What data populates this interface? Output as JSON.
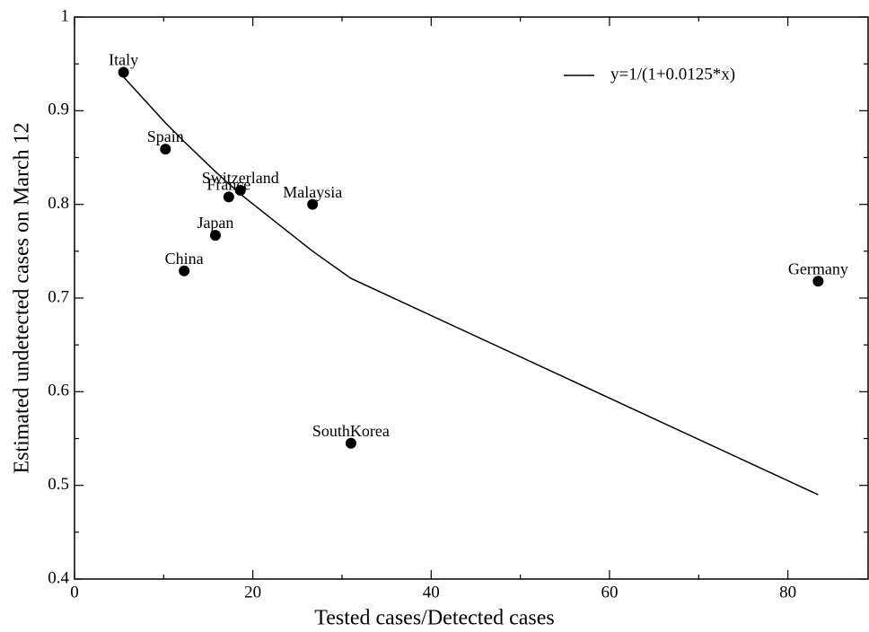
{
  "chart_data": {
    "type": "scatter",
    "xlabel": "Tested cases/Detected cases",
    "ylabel": "Estimated undetected cases on March 12",
    "xlim": [
      0,
      89
    ],
    "ylim": [
      0.4,
      1
    ],
    "xticks": [
      0,
      20,
      40,
      60,
      80
    ],
    "xminorticks": [
      10,
      30,
      50,
      70
    ],
    "yticks": [
      0.4,
      0.5,
      0.6,
      0.7,
      0.8,
      0.9,
      1
    ],
    "yminorticks": [
      0.45,
      0.55,
      0.65,
      0.75,
      0.85,
      0.95
    ],
    "legend": "upper right",
    "points": {
      "color": "#000000",
      "labels": [
        "Italy",
        "Spain",
        "Switzerland",
        "France",
        "Malaysia",
        "Japan",
        "China",
        "SouthKorea",
        "Germany"
      ],
      "x": [
        5.5,
        10.2,
        18.6,
        17.3,
        26.7,
        15.8,
        12.3,
        31.0,
        83.4
      ],
      "values": [
        0.941,
        0.859,
        0.815,
        0.808,
        0.8,
        0.767,
        0.729,
        0.545,
        0.718
      ]
    },
    "series": [
      {
        "name": "y=1/(1+0.0125*x)",
        "type": "line",
        "color": "#000000",
        "x": [
          5.5,
          10.2,
          12.3,
          15.8,
          17.3,
          18.6,
          26.7,
          31.0,
          83.4
        ],
        "values": [
          0.936,
          0.887,
          0.867,
          0.835,
          0.822,
          0.811,
          0.75,
          0.721,
          0.49
        ]
      }
    ]
  }
}
